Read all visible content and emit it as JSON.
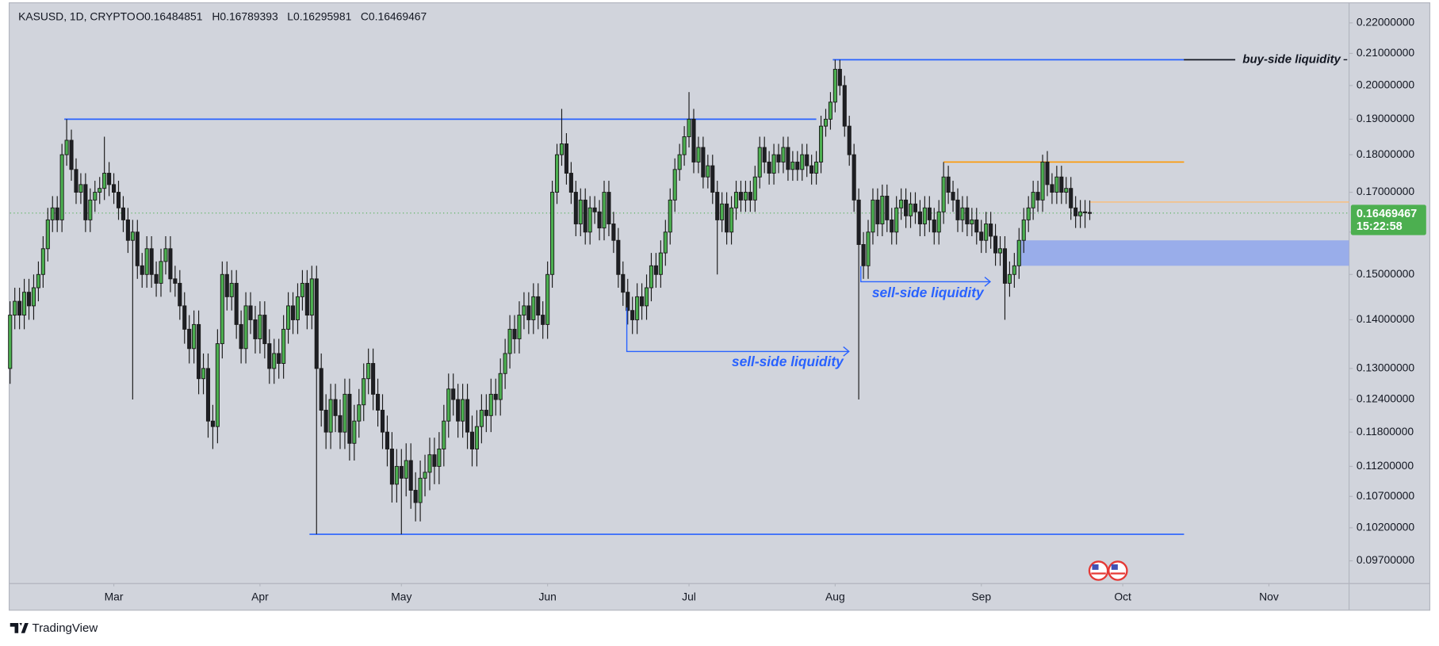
{
  "watermark": "TradingView",
  "chart_data": {
    "type": "candlestick",
    "legend": {
      "symbol": "KASUSD, 1D, CRYPTO",
      "open": "O0.16484851",
      "high": "H0.16789393",
      "low": "L0.16295981",
      "close": "C0.16469467"
    },
    "countdown": "15:22:58",
    "log_scale": true,
    "grid": false,
    "up_color": "#4caf50",
    "down_color": "#1e1f24",
    "outline_color": "#1a1a1a",
    "price_line_color": "#4caf50",
    "xlim": [
      0,
      284
    ],
    "xticks": [
      {
        "value": 22,
        "label": "Mar"
      },
      {
        "value": 53,
        "label": "Apr"
      },
      {
        "value": 83,
        "label": "May"
      },
      {
        "value": 114,
        "label": "Jun"
      },
      {
        "value": 144,
        "label": "Jul"
      },
      {
        "value": 175,
        "label": "Aug"
      },
      {
        "value": 206,
        "label": "Sep"
      },
      {
        "value": 236,
        "label": "Oct"
      },
      {
        "value": 267,
        "label": "Nov"
      }
    ],
    "ylim": [
      0.0937,
      0.2262
    ],
    "yticks": [
      {
        "value": 0.22,
        "label": "0.22000000"
      },
      {
        "value": 0.21,
        "label": "0.21000000"
      },
      {
        "value": 0.2,
        "label": "0.20000000"
      },
      {
        "value": 0.19,
        "label": "0.19000000"
      },
      {
        "value": 0.18,
        "label": "0.18000000"
      },
      {
        "value": 0.17,
        "label": "0.17000000"
      },
      {
        "value": 0.16,
        "label": "0.16000000"
      },
      {
        "value": 0.15,
        "label": "0.15000000"
      },
      {
        "value": 0.14,
        "label": "0.14000000"
      },
      {
        "value": 0.13,
        "label": "0.13000000"
      },
      {
        "value": 0.124,
        "label": "0.12400000"
      },
      {
        "value": 0.118,
        "label": "0.11800000"
      },
      {
        "value": 0.112,
        "label": "0.11200000"
      },
      {
        "value": 0.107,
        "label": "0.10700000"
      },
      {
        "value": 0.102,
        "label": "0.10200000"
      },
      {
        "value": 0.097,
        "label": "0.09700000"
      }
    ],
    "open": [
      0.13,
      0.141,
      0.144,
      0.141,
      0.146,
      0.143,
      0.147,
      0.15,
      0.156,
      0.163,
      0.166,
      0.163,
      0.18,
      0.184,
      0.176,
      0.17,
      0.172,
      0.163,
      0.168,
      0.17,
      0.171,
      0.175,
      0.172,
      0.17,
      0.166,
      0.163,
      0.158,
      0.16,
      0.152,
      0.15,
      0.156,
      0.15,
      0.148,
      0.153,
      0.156,
      0.149,
      0.148,
      0.143,
      0.138,
      0.134,
      0.139,
      0.128,
      0.13,
      0.12,
      0.119,
      0.135,
      0.15,
      0.145,
      0.148,
      0.139,
      0.134,
      0.143,
      0.14,
      0.136,
      0.141,
      0.135,
      0.13,
      0.133,
      0.131,
      0.138,
      0.143,
      0.14,
      0.145,
      0.148,
      0.141,
      0.149,
      0.13,
      0.122,
      0.118,
      0.124,
      0.121,
      0.118,
      0.125,
      0.116,
      0.12,
      0.123,
      0.128,
      0.131,
      0.125,
      0.122,
      0.118,
      0.115,
      0.109,
      0.112,
      0.11,
      0.113,
      0.108,
      0.106,
      0.11,
      0.111,
      0.114,
      0.112,
      0.115,
      0.12,
      0.126,
      0.124,
      0.12,
      0.124,
      0.118,
      0.115,
      0.119,
      0.122,
      0.121,
      0.125,
      0.124,
      0.129,
      0.133,
      0.138,
      0.136,
      0.141,
      0.143,
      0.14,
      0.145,
      0.141,
      0.139,
      0.15,
      0.17,
      0.18,
      0.183,
      0.175,
      0.17,
      0.162,
      0.168,
      0.16,
      0.166,
      0.165,
      0.161,
      0.17,
      0.162,
      0.158,
      0.15,
      0.146,
      0.142,
      0.14,
      0.145,
      0.143,
      0.147,
      0.152,
      0.15,
      0.155,
      0.16,
      0.168,
      0.176,
      0.18,
      0.185,
      0.19,
      0.178,
      0.182,
      0.174,
      0.177,
      0.17,
      0.163,
      0.167,
      0.16,
      0.166,
      0.17,
      0.168,
      0.17,
      0.168,
      0.174,
      0.182,
      0.178,
      0.175,
      0.18,
      0.178,
      0.182,
      0.176,
      0.178,
      0.176,
      0.18,
      0.177,
      0.175,
      0.178,
      0.188,
      0.19,
      0.195,
      0.205,
      0.2,
      0.188,
      0.18,
      0.168,
      0.157,
      0.152,
      0.16,
      0.168,
      0.162,
      0.169,
      0.163,
      0.16,
      0.166,
      0.168,
      0.164,
      0.167,
      0.165,
      0.162,
      0.166,
      0.163,
      0.16,
      0.165,
      0.174,
      0.17,
      0.168,
      0.163,
      0.166,
      0.162,
      0.163,
      0.16,
      0.158,
      0.162,
      0.159,
      0.155,
      0.156,
      0.148,
      0.15,
      0.152,
      0.158,
      0.163,
      0.166,
      0.17,
      0.168,
      0.178,
      0.172,
      0.17,
      0.174,
      0.17,
      0.171,
      0.166,
      0.164,
      0.165,
      0.16484851
    ],
    "high": [
      0.144,
      0.147,
      0.147,
      0.149,
      0.149,
      0.15,
      0.153,
      0.159,
      0.166,
      0.169,
      0.169,
      0.183,
      0.19,
      0.187,
      0.179,
      0.175,
      0.175,
      0.171,
      0.173,
      0.174,
      0.185,
      0.178,
      0.175,
      0.173,
      0.169,
      0.166,
      0.163,
      0.163,
      0.155,
      0.159,
      0.159,
      0.153,
      0.156,
      0.159,
      0.159,
      0.152,
      0.151,
      0.146,
      0.141,
      0.142,
      0.142,
      0.133,
      0.133,
      0.123,
      0.138,
      0.153,
      0.153,
      0.151,
      0.151,
      0.142,
      0.146,
      0.146,
      0.143,
      0.144,
      0.144,
      0.138,
      0.136,
      0.136,
      0.141,
      0.146,
      0.146,
      0.148,
      0.151,
      0.151,
      0.152,
      0.152,
      0.133,
      0.125,
      0.127,
      0.127,
      0.124,
      0.128,
      0.128,
      0.123,
      0.126,
      0.131,
      0.134,
      0.134,
      0.128,
      0.125,
      0.121,
      0.118,
      0.115,
      0.115,
      0.116,
      0.116,
      0.111,
      0.113,
      0.114,
      0.117,
      0.117,
      0.118,
      0.123,
      0.129,
      0.129,
      0.127,
      0.127,
      0.127,
      0.121,
      0.122,
      0.125,
      0.125,
      0.128,
      0.128,
      0.132,
      0.136,
      0.141,
      0.141,
      0.144,
      0.146,
      0.146,
      0.148,
      0.148,
      0.144,
      0.153,
      0.173,
      0.183,
      0.193,
      0.186,
      0.178,
      0.173,
      0.171,
      0.171,
      0.169,
      0.169,
      0.168,
      0.173,
      0.173,
      0.165,
      0.161,
      0.153,
      0.149,
      0.145,
      0.148,
      0.148,
      0.15,
      0.155,
      0.155,
      0.158,
      0.163,
      0.171,
      0.179,
      0.183,
      0.188,
      0.198,
      0.193,
      0.185,
      0.185,
      0.18,
      0.18,
      0.173,
      0.17,
      0.17,
      0.169,
      0.173,
      0.173,
      0.173,
      0.173,
      0.177,
      0.185,
      0.185,
      0.181,
      0.183,
      0.183,
      0.185,
      0.185,
      0.181,
      0.181,
      0.183,
      0.183,
      0.18,
      0.181,
      0.191,
      0.193,
      0.198,
      0.208,
      0.208,
      0.203,
      0.191,
      0.183,
      0.171,
      0.16,
      0.163,
      0.171,
      0.171,
      0.172,
      0.172,
      0.166,
      0.169,
      0.171,
      0.171,
      0.17,
      0.17,
      0.168,
      0.169,
      0.169,
      0.166,
      0.168,
      0.178,
      0.177,
      0.173,
      0.171,
      0.169,
      0.169,
      0.166,
      0.166,
      0.163,
      0.165,
      0.165,
      0.162,
      0.159,
      0.159,
      0.153,
      0.155,
      0.161,
      0.166,
      0.169,
      0.173,
      0.173,
      0.18,
      0.181,
      0.175,
      0.177,
      0.177,
      0.174,
      0.174,
      0.169,
      0.168,
      0.168,
      0.16789393
    ],
    "low": [
      0.127,
      0.138,
      0.138,
      0.138,
      0.14,
      0.14,
      0.144,
      0.147,
      0.153,
      0.16,
      0.16,
      0.16,
      0.177,
      0.173,
      0.167,
      0.167,
      0.16,
      0.16,
      0.165,
      0.167,
      0.168,
      0.169,
      0.167,
      0.163,
      0.16,
      0.155,
      0.124,
      0.149,
      0.147,
      0.147,
      0.147,
      0.145,
      0.145,
      0.15,
      0.146,
      0.145,
      0.14,
      0.135,
      0.131,
      0.131,
      0.125,
      0.125,
      0.117,
      0.115,
      0.116,
      0.132,
      0.142,
      0.142,
      0.136,
      0.131,
      0.131,
      0.137,
      0.133,
      0.133,
      0.132,
      0.127,
      0.127,
      0.128,
      0.128,
      0.135,
      0.137,
      0.137,
      0.142,
      0.138,
      0.138,
      0.101,
      0.119,
      0.115,
      0.115,
      0.118,
      0.115,
      0.115,
      0.113,
      0.113,
      0.117,
      0.12,
      0.125,
      0.122,
      0.119,
      0.115,
      0.112,
      0.106,
      0.106,
      0.101,
      0.107,
      0.105,
      0.103,
      0.103,
      0.107,
      0.108,
      0.109,
      0.109,
      0.112,
      0.117,
      0.121,
      0.117,
      0.117,
      0.115,
      0.112,
      0.112,
      0.116,
      0.118,
      0.118,
      0.121,
      0.121,
      0.126,
      0.13,
      0.133,
      0.133,
      0.138,
      0.137,
      0.137,
      0.138,
      0.136,
      0.136,
      0.147,
      0.167,
      0.177,
      0.172,
      0.167,
      0.159,
      0.159,
      0.157,
      0.157,
      0.162,
      0.158,
      0.158,
      0.159,
      0.155,
      0.147,
      0.143,
      0.139,
      0.137,
      0.137,
      0.14,
      0.14,
      0.144,
      0.147,
      0.147,
      0.152,
      0.157,
      0.165,
      0.173,
      0.177,
      0.182,
      0.175,
      0.175,
      0.171,
      0.171,
      0.167,
      0.15,
      0.16,
      0.157,
      0.157,
      0.163,
      0.165,
      0.165,
      0.165,
      0.165,
      0.171,
      0.175,
      0.172,
      0.172,
      0.175,
      0.175,
      0.173,
      0.173,
      0.173,
      0.173,
      0.174,
      0.172,
      0.172,
      0.175,
      0.185,
      0.187,
      0.192,
      0.197,
      0.185,
      0.177,
      0.165,
      0.124,
      0.149,
      0.149,
      0.157,
      0.159,
      0.159,
      0.16,
      0.157,
      0.157,
      0.163,
      0.161,
      0.161,
      0.162,
      0.159,
      0.159,
      0.16,
      0.157,
      0.157,
      0.162,
      0.167,
      0.165,
      0.16,
      0.16,
      0.159,
      0.159,
      0.157,
      0.155,
      0.155,
      0.156,
      0.152,
      0.152,
      0.14,
      0.145,
      0.147,
      0.149,
      0.155,
      0.16,
      0.163,
      0.165,
      0.165,
      0.169,
      0.167,
      0.167,
      0.167,
      0.167,
      0.163,
      0.161,
      0.161,
      0.161,
      0.16295981
    ],
    "close": [
      0.141,
      0.144,
      0.141,
      0.146,
      0.143,
      0.147,
      0.15,
      0.156,
      0.163,
      0.166,
      0.163,
      0.18,
      0.184,
      0.176,
      0.17,
      0.172,
      0.163,
      0.168,
      0.17,
      0.171,
      0.175,
      0.172,
      0.17,
      0.166,
      0.163,
      0.158,
      0.16,
      0.152,
      0.15,
      0.156,
      0.15,
      0.148,
      0.153,
      0.156,
      0.149,
      0.148,
      0.143,
      0.138,
      0.134,
      0.139,
      0.128,
      0.13,
      0.12,
      0.119,
      0.135,
      0.15,
      0.145,
      0.148,
      0.139,
      0.134,
      0.143,
      0.14,
      0.136,
      0.141,
      0.135,
      0.13,
      0.133,
      0.131,
      0.138,
      0.143,
      0.14,
      0.145,
      0.148,
      0.141,
      0.149,
      0.13,
      0.122,
      0.118,
      0.124,
      0.121,
      0.118,
      0.125,
      0.116,
      0.12,
      0.123,
      0.128,
      0.131,
      0.125,
      0.122,
      0.118,
      0.115,
      0.109,
      0.112,
      0.11,
      0.113,
      0.108,
      0.106,
      0.11,
      0.111,
      0.114,
      0.112,
      0.115,
      0.12,
      0.126,
      0.124,
      0.12,
      0.124,
      0.118,
      0.115,
      0.119,
      0.122,
      0.121,
      0.125,
      0.124,
      0.129,
      0.133,
      0.138,
      0.136,
      0.141,
      0.143,
      0.14,
      0.145,
      0.141,
      0.139,
      0.15,
      0.17,
      0.18,
      0.183,
      0.175,
      0.17,
      0.162,
      0.168,
      0.16,
      0.166,
      0.165,
      0.161,
      0.17,
      0.162,
      0.158,
      0.15,
      0.146,
      0.142,
      0.14,
      0.145,
      0.143,
      0.147,
      0.152,
      0.15,
      0.155,
      0.16,
      0.168,
      0.176,
      0.18,
      0.185,
      0.19,
      0.178,
      0.182,
      0.174,
      0.177,
      0.17,
      0.163,
      0.167,
      0.16,
      0.166,
      0.17,
      0.168,
      0.17,
      0.168,
      0.174,
      0.182,
      0.178,
      0.175,
      0.18,
      0.178,
      0.182,
      0.176,
      0.178,
      0.176,
      0.18,
      0.177,
      0.175,
      0.178,
      0.188,
      0.19,
      0.195,
      0.205,
      0.2,
      0.188,
      0.18,
      0.168,
      0.157,
      0.152,
      0.16,
      0.168,
      0.162,
      0.169,
      0.163,
      0.16,
      0.166,
      0.168,
      0.164,
      0.167,
      0.165,
      0.162,
      0.166,
      0.163,
      0.16,
      0.165,
      0.174,
      0.17,
      0.168,
      0.163,
      0.166,
      0.162,
      0.163,
      0.16,
      0.158,
      0.162,
      0.159,
      0.155,
      0.156,
      0.148,
      0.15,
      0.152,
      0.158,
      0.163,
      0.166,
      0.17,
      0.168,
      0.178,
      0.172,
      0.17,
      0.174,
      0.17,
      0.171,
      0.166,
      0.164,
      0.165,
      0.1648,
      0.16469467
    ],
    "levels": [
      {
        "value": 0.19,
        "from": 11.5,
        "to": 171,
        "color": "#2962ff"
      },
      {
        "value": 0.208,
        "from": 174.5,
        "to": 249,
        "color": "#2962ff"
      },
      {
        "value": 0.101,
        "from": 63.5,
        "to": 249,
        "color": "#2962ff"
      },
      {
        "value": 0.178,
        "from": 198,
        "to": 249,
        "color": "#ff9800"
      },
      {
        "value": 0.1675,
        "from": 229,
        "to": 284,
        "color": "#f3c28c"
      }
    ],
    "zone": {
      "low": 0.152,
      "high": 0.158,
      "from": 213.5,
      "to": 284,
      "color": "#8fa6ec"
    },
    "annotations": [
      {
        "text": "buy-side liquidity"
      },
      {
        "text": "sell-side liquidity"
      },
      {
        "text": "sell-side liquidity"
      }
    ]
  }
}
